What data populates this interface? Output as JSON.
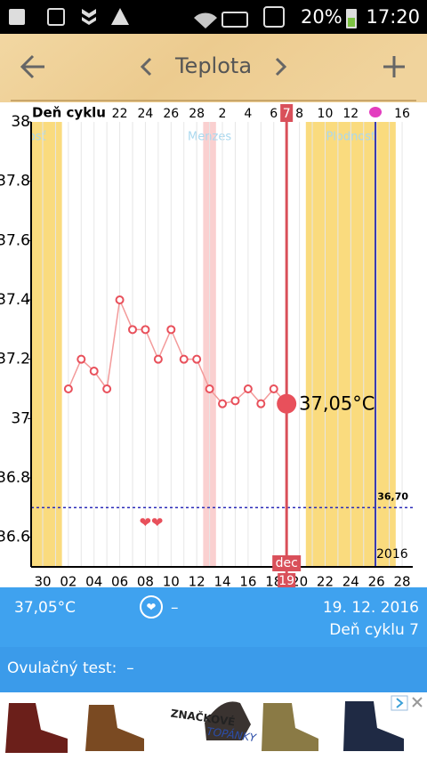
{
  "status_bar": {
    "battery": "20%",
    "time": "17:20"
  },
  "toolbar": {
    "title": "Teplota"
  },
  "chart_data": {
    "type": "line",
    "cycle_row_label": "Deň cyklu",
    "categories": [
      "30",
      null,
      "02",
      null,
      "04",
      null,
      "06",
      null,
      "08",
      null,
      "10",
      null,
      "12",
      null,
      "14",
      null,
      "16",
      null,
      "18",
      null,
      "20",
      null,
      "22",
      null,
      "24",
      null,
      "26",
      null,
      "28"
    ],
    "cycle_days": [
      null,
      null,
      null,
      null,
      null,
      null,
      "22",
      null,
      "24",
      null,
      "26",
      null,
      "28",
      null,
      "2",
      null,
      "4",
      null,
      "6",
      "7",
      "8",
      null,
      "10",
      null,
      "12",
      null,
      null,
      null,
      "16"
    ],
    "values": [
      null,
      null,
      37.1,
      37.2,
      37.16,
      37.1,
      37.4,
      37.3,
      37.3,
      37.2,
      37.3,
      37.2,
      37.2,
      37.1,
      37.05,
      37.06,
      37.1,
      37.05,
      37.1,
      37.05,
      null,
      null,
      null,
      null,
      null,
      null,
      null,
      null,
      null
    ],
    "value_labels": [
      null,
      null,
      null,
      null,
      null,
      null,
      null,
      null,
      null,
      null,
      null,
      null,
      null,
      null,
      null,
      null,
      null,
      null,
      null,
      "37,05°C",
      null,
      null,
      null,
      null,
      null,
      null,
      null,
      null,
      null
    ],
    "color": "#e8505b",
    "ylim": [
      36.5,
      38
    ],
    "yticks": [
      38,
      37.8,
      37.6,
      37.4,
      37.2,
      37,
      36.8,
      36.6
    ],
    "phases": [
      {
        "name": "Plodnosť",
        "from": 0,
        "to": 1,
        "color": "#fadb7e"
      },
      {
        "name": "Menzes",
        "from": 13,
        "to": 13,
        "color": "#fad0d0"
      },
      {
        "name": "Plodnosť",
        "from": 21,
        "to": 27,
        "color": "#fadb7e"
      }
    ],
    "threshold": {
      "value": 36.7,
      "label": "36,70"
    },
    "selected": {
      "index": 19,
      "month": "dec",
      "day": "19"
    },
    "year": "2016"
  },
  "info": {
    "temperature": "37,05°C",
    "note": "–",
    "date": "19. 12. 2016",
    "cycle_day": "Deň cyklu 7",
    "ovulation_test": "Ovulačný test:  –"
  },
  "ad": {
    "brand": "ZNAČKOVÉ",
    "brand2": "TOPÁNKY"
  }
}
